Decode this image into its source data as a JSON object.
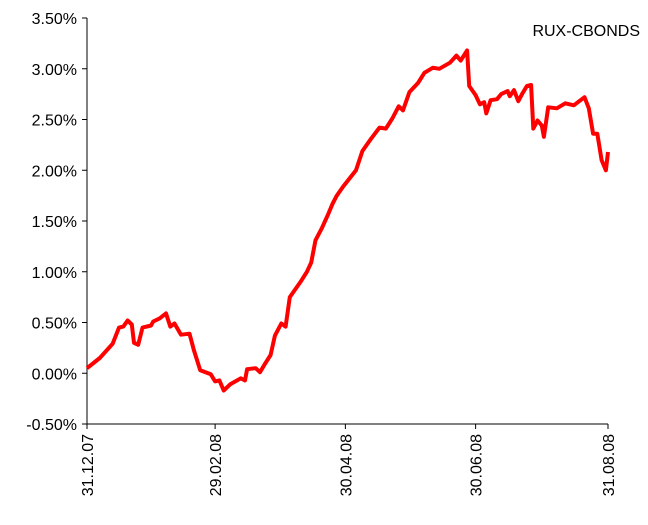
{
  "chart_data": {
    "type": "line",
    "x": [
      "2007-12-31",
      "2008-01-06",
      "2008-01-12",
      "2008-01-15",
      "2008-01-17",
      "2008-01-19",
      "2008-01-21",
      "2008-01-22",
      "2008-01-24",
      "2008-01-26",
      "2008-01-30",
      "2008-01-31",
      "2008-02-03",
      "2008-02-06",
      "2008-02-08",
      "2008-02-10",
      "2008-02-13",
      "2008-02-17",
      "2008-02-19",
      "2008-02-22",
      "2008-02-27",
      "2008-02-29",
      "2008-03-02",
      "2008-03-04",
      "2008-03-07",
      "2008-03-12",
      "2008-03-14",
      "2008-03-15",
      "2008-03-19",
      "2008-03-21",
      "2008-03-23",
      "2008-03-26",
      "2008-03-28",
      "2008-03-31",
      "2008-04-02",
      "2008-04-04",
      "2008-04-09",
      "2008-04-12",
      "2008-04-14",
      "2008-04-16",
      "2008-04-19",
      "2008-04-22",
      "2008-04-24",
      "2008-04-26",
      "2008-04-29",
      "2008-05-02",
      "2008-05-05",
      "2008-05-08",
      "2008-05-12",
      "2008-05-16",
      "2008-05-19",
      "2008-05-22",
      "2008-05-25",
      "2008-05-27",
      "2008-05-30",
      "2008-06-03",
      "2008-06-06",
      "2008-06-10",
      "2008-06-13",
      "2008-06-18",
      "2008-06-21",
      "2008-06-23",
      "2008-06-26",
      "2008-06-27",
      "2008-06-30",
      "2008-07-02",
      "2008-07-04",
      "2008-07-05",
      "2008-07-07",
      "2008-07-10",
      "2008-07-12",
      "2008-07-15",
      "2008-07-16",
      "2008-07-18",
      "2008-07-20",
      "2008-07-22",
      "2008-07-24",
      "2008-07-26",
      "2008-07-27",
      "2008-07-29",
      "2008-07-31",
      "2008-08-01",
      "2008-08-03",
      "2008-08-07",
      "2008-08-11",
      "2008-08-15",
      "2008-08-20",
      "2008-08-22",
      "2008-08-24",
      "2008-08-26",
      "2008-08-28",
      "2008-08-30",
      "2008-08-31"
    ],
    "series": [
      {
        "name": "RUX-CBONDS",
        "color": "#ff0000",
        "values": [
          0.05,
          0.15,
          0.29,
          0.45,
          0.46,
          0.52,
          0.48,
          0.3,
          0.28,
          0.45,
          0.47,
          0.51,
          0.54,
          0.59,
          0.46,
          0.49,
          0.38,
          0.39,
          0.23,
          0.03,
          -0.01,
          -0.08,
          -0.07,
          -0.17,
          -0.11,
          -0.05,
          -0.07,
          0.04,
          0.05,
          0.01,
          0.08,
          0.18,
          0.37,
          0.49,
          0.46,
          0.75,
          0.9,
          1.0,
          1.09,
          1.31,
          1.43,
          1.57,
          1.67,
          1.75,
          1.84,
          1.92,
          2.0,
          2.19,
          2.31,
          2.42,
          2.41,
          2.51,
          2.63,
          2.59,
          2.77,
          2.86,
          2.96,
          3.01,
          3.0,
          3.06,
          3.13,
          3.08,
          3.18,
          2.83,
          2.74,
          2.65,
          2.67,
          2.56,
          2.69,
          2.7,
          2.75,
          2.78,
          2.73,
          2.79,
          2.68,
          2.76,
          2.83,
          2.84,
          2.41,
          2.49,
          2.44,
          2.33,
          2.62,
          2.61,
          2.66,
          2.64,
          2.72,
          2.61,
          2.36,
          2.36,
          2.1,
          2.0,
          2.18
        ]
      }
    ],
    "xlim": [
      "2007-12-31",
      "2008-08-31"
    ],
    "xticks": [
      {
        "value": "2007-12-31",
        "label": "31.12.07"
      },
      {
        "value": "2008-02-29",
        "label": "29.02.08"
      },
      {
        "value": "2008-04-30",
        "label": "30.04.08"
      },
      {
        "value": "2008-06-30",
        "label": "30.06.08"
      },
      {
        "value": "2008-08-31",
        "label": "31.08.08"
      }
    ],
    "ylim": [
      -0.5,
      3.5
    ],
    "yticks": [
      {
        "value": -0.5,
        "label": "-0.50%"
      },
      {
        "value": 0,
        "label": "0.00%"
      },
      {
        "value": 0.5,
        "label": "0.50%"
      },
      {
        "value": 1,
        "label": "1.00%"
      },
      {
        "value": 1.5,
        "label": "1.50%"
      },
      {
        "value": 2,
        "label": "2.00%"
      },
      {
        "value": 2.5,
        "label": "2.50%"
      },
      {
        "value": 3,
        "label": "3.00%"
      },
      {
        "value": 3.5,
        "label": "3.50%"
      }
    ],
    "grid": false,
    "legend": "top-right"
  }
}
